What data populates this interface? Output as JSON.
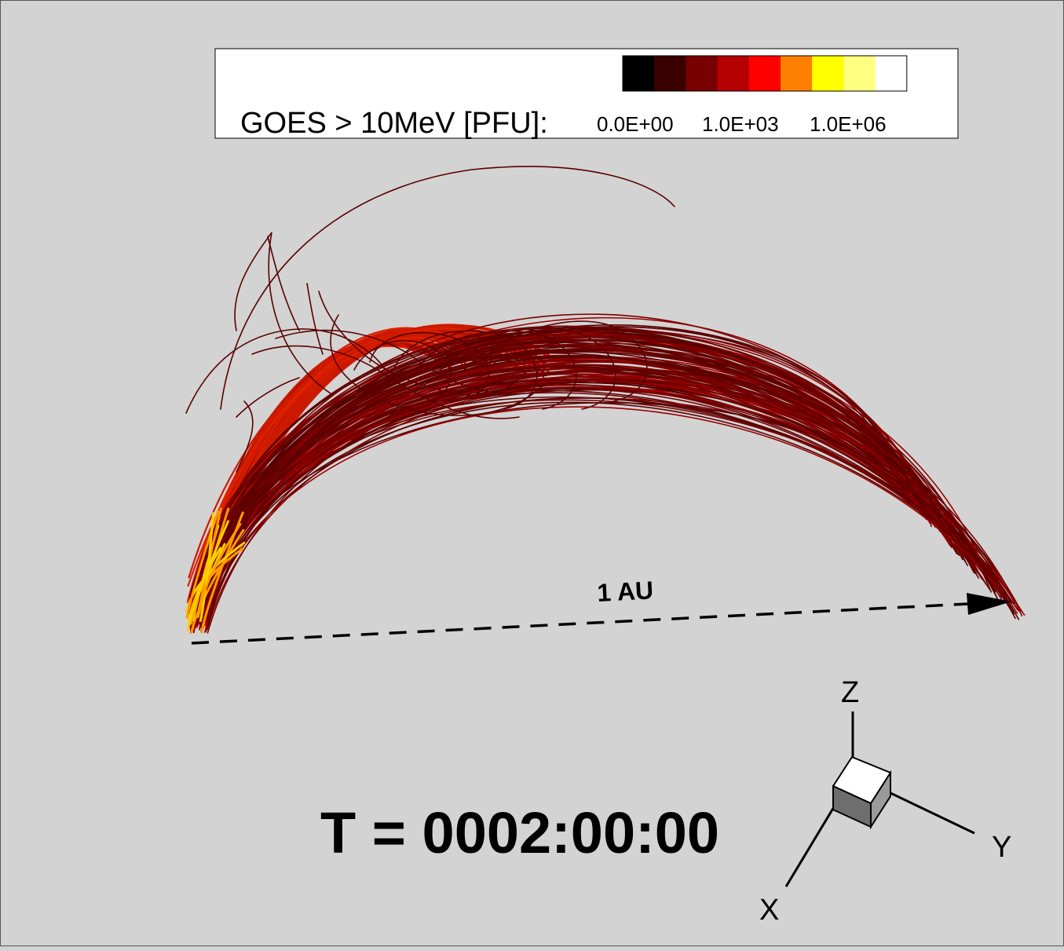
{
  "legend": {
    "label": "GOES > 10MeV [PFU]:",
    "ticks": [
      "0.0E+00",
      "1.0E+03",
      "1.0E+06"
    ],
    "colors": [
      "#000000",
      "#3a0000",
      "#780000",
      "#b40000",
      "#ff0000",
      "#ff8000",
      "#ffff00",
      "#ffff80",
      "#ffffff"
    ]
  },
  "distance_label": "1 AU",
  "time_label": "T = 0002:00:00",
  "axes": {
    "x": "X",
    "y": "Y",
    "z": "Z"
  },
  "colors": {
    "background": "#d3d3d3",
    "field_line_dark": "#5a0000",
    "field_line_mid": "#9a0000",
    "field_line_bright": "#cc1a00",
    "foot_hot": "#ffd000"
  }
}
